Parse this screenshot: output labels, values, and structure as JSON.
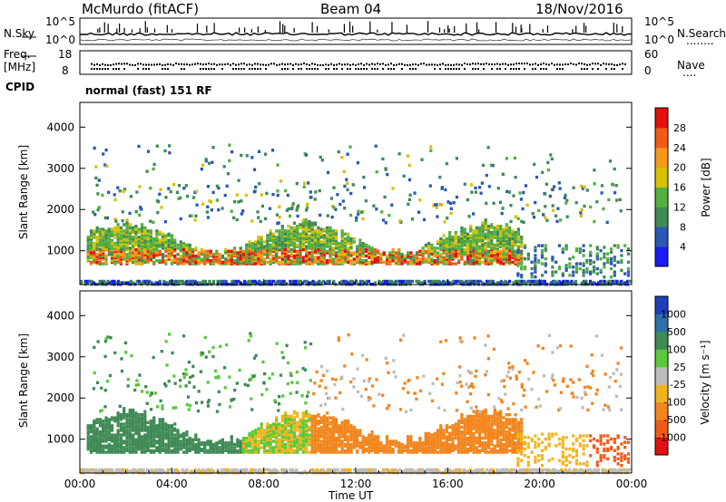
{
  "header": {
    "station": "McMurdo (fitACF)",
    "beam": "Beam 04",
    "date": "18/Nov/2016"
  },
  "summary_panel": {
    "left_labels": {
      "nsky": "N.Sky",
      "freq": "Freq.",
      "freq_unit": "[MHz]",
      "cpid": "CPID"
    },
    "right_labels": {
      "nsearch": "N.Search",
      "nsearch_dots": "........",
      "nave": "Nave",
      "nave_dots": "...."
    },
    "nsky_ticks": {
      "top": "10^5",
      "bottom": "10^0"
    },
    "nsearch_ticks": {
      "top": "10^5",
      "bottom": "10^0"
    },
    "freq_ticks": {
      "top": "18",
      "bottom": "8"
    },
    "nave_ticks": {
      "top": "60",
      "bottom": "0"
    },
    "cpid_text": "normal (fast) 151 RF"
  },
  "chart_data": [
    {
      "type": "heatmap",
      "ylabel": "Slant Range [km]",
      "yticks": [
        "1000",
        "2000",
        "3000",
        "4000"
      ],
      "yrange_km": [
        180,
        4600
      ],
      "colorbar": {
        "label": "Power [dB]",
        "ticks": [
          "4",
          "8",
          "12",
          "16",
          "20",
          "24",
          "28"
        ],
        "colors": [
          "#1a1af5",
          "#2b58b5",
          "#3f8a55",
          "#54b03e",
          "#d8c000",
          "#f59a18",
          "#f25a18",
          "#e21010"
        ]
      },
      "colorbar_range": [
        0,
        30
      ],
      "echo_regions": [
        {
          "t0": 0.5,
          "t1": 19.0,
          "r0": 700,
          "r1": 1700,
          "desc": "main band"
        },
        {
          "t0": 1.5,
          "t1": 11.0,
          "r0": 1800,
          "r1": 2600
        },
        {
          "t0": 0.0,
          "t1": 24.0,
          "r0": 180,
          "r1": 320
        }
      ]
    },
    {
      "type": "heatmap",
      "ylabel": "Slant Range [km]",
      "yticks": [
        "1000",
        "2000",
        "3000",
        "4000"
      ],
      "yrange_km": [
        180,
        4600
      ],
      "colorbar": {
        "label": "Velocity [m s⁻¹]",
        "ticks": [
          "1000",
          "500",
          "100",
          "25",
          "-25",
          "-100",
          "-500",
          "-1000"
        ],
        "colors": [
          "#1e3fb8",
          "#2f70a8",
          "#3f8a55",
          "#5cc83b",
          "#bdbdbd",
          "#f2b41e",
          "#f2861e",
          "#f25a18",
          "#e21010"
        ]
      },
      "colorbar_range": [
        -1000,
        1000
      ],
      "xlabel": "Time UT",
      "xticks": [
        "00:00",
        "04:00",
        "08:00",
        "12:00",
        "16:00",
        "20:00",
        "00:00"
      ]
    }
  ]
}
